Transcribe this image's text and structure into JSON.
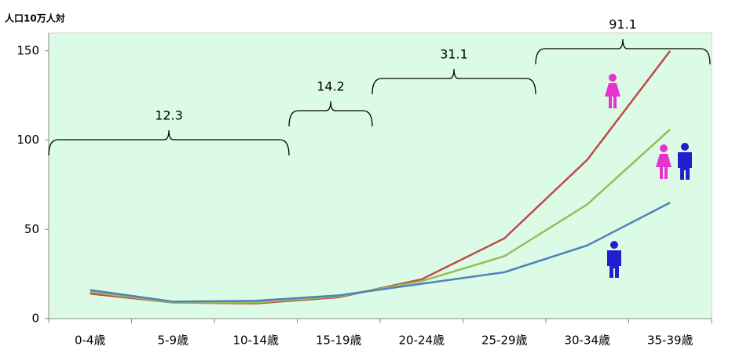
{
  "chart_data": {
    "type": "line",
    "y_label": "人口10万人対",
    "categories": [
      "0-4歳",
      "5-9歳",
      "10-14歳",
      "15-19歳",
      "20-24歳",
      "25-29歳",
      "30-34歳",
      "35-39歳"
    ],
    "series": [
      {
        "color": "#be4b48",
        "values": [
          14,
          9,
          8.5,
          12,
          22,
          45,
          89,
          150
        ]
      },
      {
        "color": "#9bbb59",
        "values": [
          15,
          9,
          9,
          12.5,
          21,
          35,
          64,
          106
        ]
      },
      {
        "color": "#4f81bd",
        "values": [
          16,
          9.5,
          10,
          13,
          19.5,
          26,
          41,
          65
        ]
      }
    ],
    "ylim": [
      0,
      160
    ],
    "yticks": [
      0,
      50,
      100,
      150
    ],
    "annotations": [
      "12.3",
      "14.2",
      "31.1",
      "91.1"
    ]
  }
}
